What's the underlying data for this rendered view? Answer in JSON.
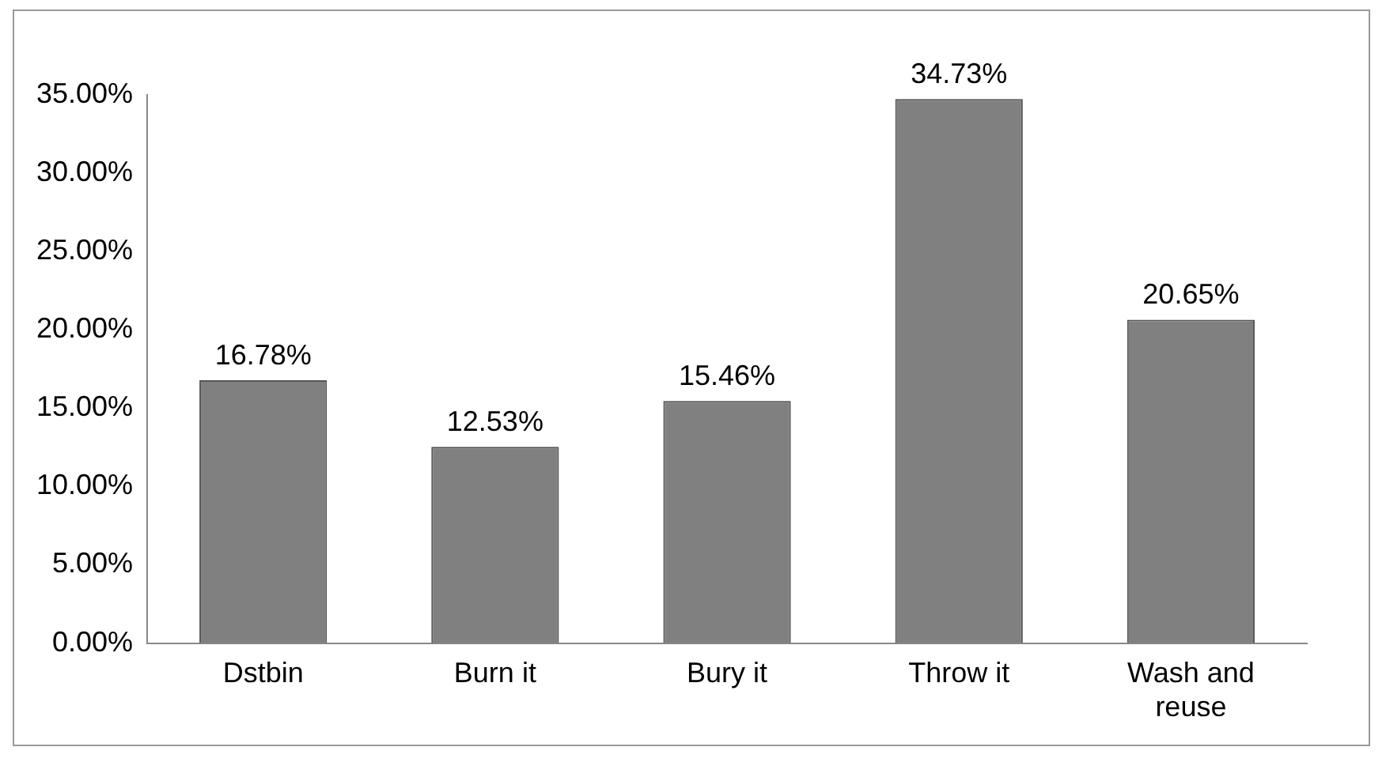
{
  "chart_data": {
    "type": "bar",
    "categories": [
      "Dstbin",
      "Burn it",
      "Bury it",
      "Throw it",
      [
        "Wash and",
        "reuse"
      ]
    ],
    "values": [
      16.78,
      12.53,
      15.46,
      34.73,
      20.65
    ],
    "value_labels": [
      "16.78%",
      "12.53%",
      "15.46%",
      "34.73%",
      "20.65%"
    ],
    "color": "#808080",
    "ylim": [
      0,
      35
    ],
    "yticks": [
      {
        "value": 0,
        "label": "0.00%"
      },
      {
        "value": 5,
        "label": "5.00%"
      },
      {
        "value": 10,
        "label": "10.00%"
      },
      {
        "value": 15,
        "label": "15.00%"
      },
      {
        "value": 20,
        "label": "20.00%"
      },
      {
        "value": 25,
        "label": "25.00%"
      },
      {
        "value": 30,
        "label": "30.00%"
      },
      {
        "value": 35,
        "label": "35.00%"
      }
    ],
    "grid": false,
    "legend": false
  }
}
